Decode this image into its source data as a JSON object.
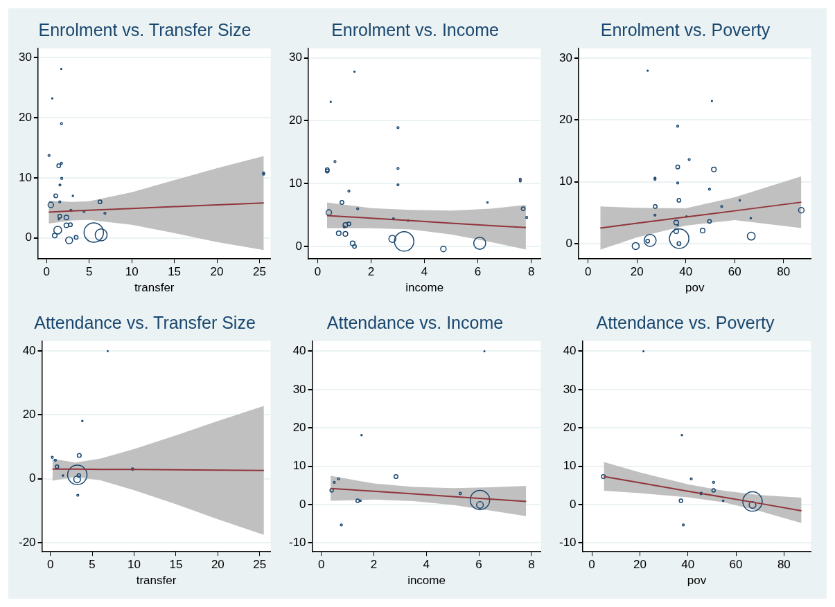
{
  "chart_data": [
    {
      "type": "bubble",
      "title": "Enrolment vs. Transfer Size",
      "xlabel": "transfer",
      "xlim": [
        -1,
        26.3
      ],
      "xticks": [
        0,
        5,
        10,
        15,
        20,
        25
      ],
      "ylim": [
        -3.5,
        31.5
      ],
      "yticks": [
        0,
        10,
        20,
        30
      ],
      "grid": "y",
      "series": [
        {
          "type": "bubble",
          "color": "#1a476f",
          "x": [
            1.72,
            0.67,
            1.75,
            0.29,
            1.43,
            1.75,
            1.78,
            1.57,
            1.08,
            3.09,
            1.55,
            6.27,
            0.5,
            2.86,
            4.4,
            6.85,
            1.55,
            2.33,
            1.43,
            2.33,
            2.8,
            1.31,
            0.96,
            2.65,
            3.47,
            5.54,
            6.41,
            25.48,
            25.48
          ],
          "values": [
            28.1,
            23.2,
            19.0,
            13.7,
            12.0,
            12.4,
            9.9,
            8.8,
            7.0,
            7.0,
            6.0,
            6.0,
            5.5,
            4.6,
            4.4,
            4.1,
            3.6,
            3.4,
            3.1,
            2.1,
            2.2,
            1.3,
            0.4,
            -0.4,
            0.1,
            0.9,
            0.5,
            10.6,
            10.8
          ],
          "sizes": [
            0.004,
            0.004,
            0.01,
            0.01,
            0.036,
            0.01,
            0.01,
            0.01,
            0.036,
            0.005,
            0.01,
            0.036,
            0.08,
            0.01,
            0.01,
            0.01,
            0.036,
            0.057,
            0.005,
            0.057,
            0.036,
            0.16,
            0.057,
            0.13,
            0.036,
            1,
            0.38,
            0.01,
            0.01
          ]
        },
        {
          "type": "line",
          "color": "#90353b",
          "x": [
            0.25,
            3,
            5,
            10,
            15,
            20,
            25.5
          ],
          "values": [
            4.3,
            4.5,
            4.6,
            4.9,
            5.2,
            5.5,
            5.8
          ],
          "lower": [
            2.4,
            2.9,
            3.0,
            2.2,
            0.8,
            -0.7,
            -2.0
          ],
          "upper": [
            6.2,
            6.0,
            6.1,
            7.6,
            9.6,
            11.6,
            13.6
          ]
        }
      ]
    },
    {
      "type": "bubble",
      "title": "Enrolment vs. Income",
      "xlabel": "income",
      "xlim": [
        -0.35,
        8.36
      ],
      "xticks": [
        0,
        2,
        4,
        6,
        8
      ],
      "ylim": [
        -2,
        31.5
      ],
      "yticks": [
        0,
        10,
        20,
        30
      ],
      "grid": "y",
      "series": [
        {
          "type": "bubble",
          "color": "#1a476f",
          "x": [
            1.38,
            0.49,
            3.01,
            0.65,
            0.36,
            0.36,
            3.01,
            7.59,
            7.59,
            3.01,
            1.17,
            0.91,
            6.36,
            1.5,
            7.7,
            0.42,
            2.84,
            7.83,
            3.39,
            1.17,
            1.04,
            1.0,
            0.79,
            1.04,
            2.8,
            3.24,
            1.31,
            1.38,
            4.71,
            6.07
          ],
          "values": [
            27.8,
            23.0,
            18.9,
            13.5,
            12.0,
            12.2,
            12.4,
            10.7,
            10.4,
            9.8,
            8.8,
            7.0,
            7.0,
            6.0,
            6.0,
            5.4,
            4.4,
            4.6,
            4.1,
            3.6,
            3.4,
            3.1,
            2.1,
            2.0,
            1.2,
            0.8,
            0.5,
            0.0,
            -0.4,
            0.5
          ],
          "sizes": [
            0.004,
            0.004,
            0.01,
            0.01,
            0.036,
            0.036,
            0.01,
            0.01,
            0.01,
            0.01,
            0.01,
            0.036,
            0.005,
            0.01,
            0.036,
            0.08,
            0.01,
            0.01,
            0.005,
            0.036,
            0.057,
            0.01,
            0.057,
            0.057,
            0.13,
            1,
            0.057,
            0.036,
            0.08,
            0.38
          ]
        },
        {
          "type": "line",
          "color": "#90353b",
          "x": [
            0.35,
            2,
            3.5,
            5,
            6.5,
            7.8
          ],
          "values": [
            4.9,
            4.5,
            4.1,
            3.7,
            3.3,
            3.0
          ],
          "lower": [
            2.9,
            2.9,
            2.7,
            1.9,
            0.7,
            -0.5
          ],
          "upper": [
            7.0,
            6.1,
            5.8,
            5.7,
            6.0,
            6.6
          ]
        }
      ]
    },
    {
      "type": "bubble",
      "title": "Enrolment vs. Poverty",
      "xlabel": "pov",
      "xlim": [
        -3.9,
        91.3
      ],
      "xticks": [
        0,
        20,
        40,
        60,
        80
      ],
      "ylim": [
        -2.5,
        31.6
      ],
      "yticks": [
        0,
        10,
        20,
        30
      ],
      "grid": "y",
      "series": [
        {
          "type": "bubble",
          "color": "#1a476f",
          "x": [
            24.4,
            50.7,
            36.7,
            41.4,
            36.7,
            51.5,
            27.4,
            27.4,
            36.7,
            49.7,
            37.2,
            62.1,
            27.5,
            54.7,
            87.3,
            27.4,
            40.3,
            66.6,
            49.7,
            36.1,
            36.7,
            46.9,
            36.1,
            66.8,
            37.3,
            25.4,
            24.4,
            37.2,
            19.5
          ],
          "values": [
            28.0,
            23.1,
            19.0,
            13.6,
            12.4,
            12.0,
            10.6,
            10.4,
            9.8,
            8.8,
            7.0,
            7.0,
            6.0,
            6.0,
            5.4,
            4.6,
            4.4,
            4.1,
            3.6,
            3.4,
            3.0,
            2.1,
            2.0,
            1.2,
            0.8,
            0.5,
            0.4,
            0.0,
            -0.4
          ],
          "sizes": [
            0.004,
            0.004,
            0.01,
            0.01,
            0.036,
            0.057,
            0.01,
            0.01,
            0.01,
            0.01,
            0.036,
            0.005,
            0.036,
            0.01,
            0.08,
            0.01,
            0.005,
            0.005,
            0.036,
            0.057,
            0.005,
            0.057,
            0.057,
            0.16,
            1,
            0.38,
            0.036,
            0.036,
            0.13
          ]
        },
        {
          "type": "line",
          "color": "#90353b",
          "x": [
            5,
            20,
            40,
            60,
            87.3
          ],
          "values": [
            2.5,
            3.3,
            4.3,
            5.3,
            6.7
          ],
          "lower": [
            -1.0,
            1.0,
            2.9,
            3.8,
            2.5
          ],
          "upper": [
            6.0,
            5.8,
            5.7,
            7.5,
            10.9
          ]
        }
      ]
    },
    {
      "type": "bubble",
      "title": "Attendance vs. Transfer Size",
      "xlabel": "transfer",
      "xlim": [
        -1,
        26.3
      ],
      "xticks": [
        0,
        5,
        10,
        15,
        20,
        25
      ],
      "ylim": [
        -22.9,
        43.1
      ],
      "yticks": [
        -20,
        0,
        20,
        40
      ],
      "grid": "y",
      "series": [
        {
          "type": "bubble",
          "color": "#1a476f",
          "x": [
            6.85,
            3.82,
            0.23,
            0.6,
            0.8,
            3.45,
            1.51,
            3.4,
            3.22,
            3.2,
            3.28,
            9.82
          ],
          "values": [
            40.0,
            18.1,
            6.7,
            5.8,
            3.8,
            7.3,
            1.0,
            1.0,
            1.2,
            -0.2,
            -5.2,
            3.0
          ],
          "sizes": [
            0.003,
            0.005,
            0.01,
            0.01,
            0.03,
            0.04,
            0.006,
            0.03,
            1,
            0.12,
            0.01,
            0.015
          ]
        },
        {
          "type": "line",
          "color": "#90353b",
          "x": [
            0.25,
            3,
            6,
            10,
            15,
            20,
            25.5
          ],
          "values": [
            3.0,
            3.0,
            2.9,
            2.9,
            2.8,
            2.7,
            2.6
          ],
          "lower": [
            -0.6,
            0.6,
            -0.5,
            -3.6,
            -8.0,
            -12.7,
            -17.6
          ],
          "upper": [
            6.2,
            5.1,
            6.3,
            9.3,
            13.6,
            18.1,
            22.8
          ]
        }
      ]
    },
    {
      "type": "bubble",
      "title": "Attendance vs. Income",
      "xlabel": "income",
      "xlim": [
        -0.35,
        8.36
      ],
      "xticks": [
        0,
        2,
        4,
        6,
        8
      ],
      "ylim": [
        -12.3,
        42.6
      ],
      "yticks": [
        -10,
        0,
        10,
        20,
        30,
        40
      ],
      "grid": "y",
      "series": [
        {
          "type": "bubble",
          "color": "#1a476f",
          "x": [
            6.21,
            1.53,
            2.84,
            0.65,
            0.49,
            0.39,
            5.29,
            1.38,
            1.49,
            0.76,
            6.04,
            6.04
          ],
          "values": [
            40.0,
            18.1,
            7.3,
            6.7,
            5.8,
            3.7,
            2.9,
            1.0,
            1.0,
            -5.3,
            1.2,
            -0.1
          ],
          "sizes": [
            0.003,
            0.005,
            0.04,
            0.01,
            0.01,
            0.03,
            0.015,
            0.03,
            0.006,
            0.01,
            1,
            0.12
          ]
        },
        {
          "type": "line",
          "color": "#90353b",
          "x": [
            0.35,
            2,
            3.5,
            5,
            6.5,
            7.8
          ],
          "values": [
            4.2,
            3.5,
            2.8,
            2.1,
            1.4,
            0.8
          ],
          "lower": [
            1.0,
            1.3,
            0.9,
            -0.1,
            -1.6,
            -3.0
          ],
          "upper": [
            7.5,
            5.5,
            4.6,
            4.3,
            4.5,
            4.9
          ]
        }
      ]
    },
    {
      "type": "bubble",
      "title": "Attendance vs. Poverty",
      "xlabel": "pov",
      "xlim": [
        -3.9,
        91.3
      ],
      "xticks": [
        0,
        20,
        40,
        60,
        80
      ],
      "ylim": [
        -12.3,
        42.6
      ],
      "yticks": [
        -10,
        0,
        10,
        20,
        30,
        40
      ],
      "grid": "y",
      "series": [
        {
          "type": "bubble",
          "color": "#1a476f",
          "x": [
            21.5,
            37.5,
            4.8,
            41.4,
            50.7,
            50.7,
            45.5,
            37.1,
            54.7,
            38.1,
            66.9,
            66.9
          ],
          "values": [
            40.0,
            18.1,
            7.3,
            6.7,
            5.8,
            3.7,
            2.9,
            1.0,
            1.0,
            -5.3,
            0.8,
            -0.1
          ],
          "sizes": [
            0.003,
            0.005,
            0.04,
            0.01,
            0.01,
            0.03,
            0.015,
            0.03,
            0.006,
            0.01,
            1,
            0.12
          ]
        },
        {
          "type": "line",
          "color": "#90353b",
          "x": [
            5,
            20,
            40,
            55,
            70,
            87.3
          ],
          "values": [
            7.3,
            5.7,
            3.5,
            1.9,
            0.3,
            -1.6
          ],
          "lower": [
            3.6,
            3.0,
            1.9,
            0.6,
            -1.7,
            -4.8
          ],
          "upper": [
            11.1,
            8.4,
            5.3,
            3.6,
            2.5,
            1.8
          ]
        }
      ]
    }
  ]
}
